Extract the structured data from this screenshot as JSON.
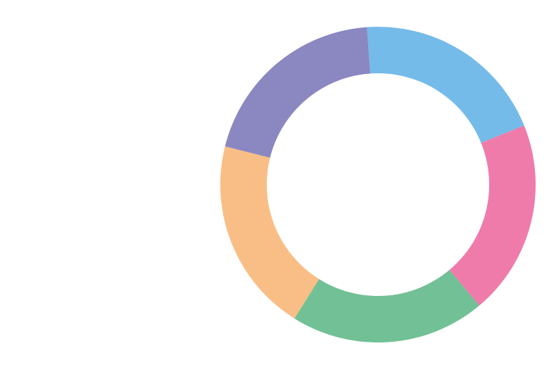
{
  "chart_data": {
    "type": "donut",
    "values": [
      20,
      20,
      20,
      20,
      20
    ],
    "colors": [
      "#74bbe9",
      "#ef7bab",
      "#72c095",
      "#f9be86",
      "#8a87c1"
    ],
    "start_angle": -4,
    "direction": "clockwise"
  }
}
